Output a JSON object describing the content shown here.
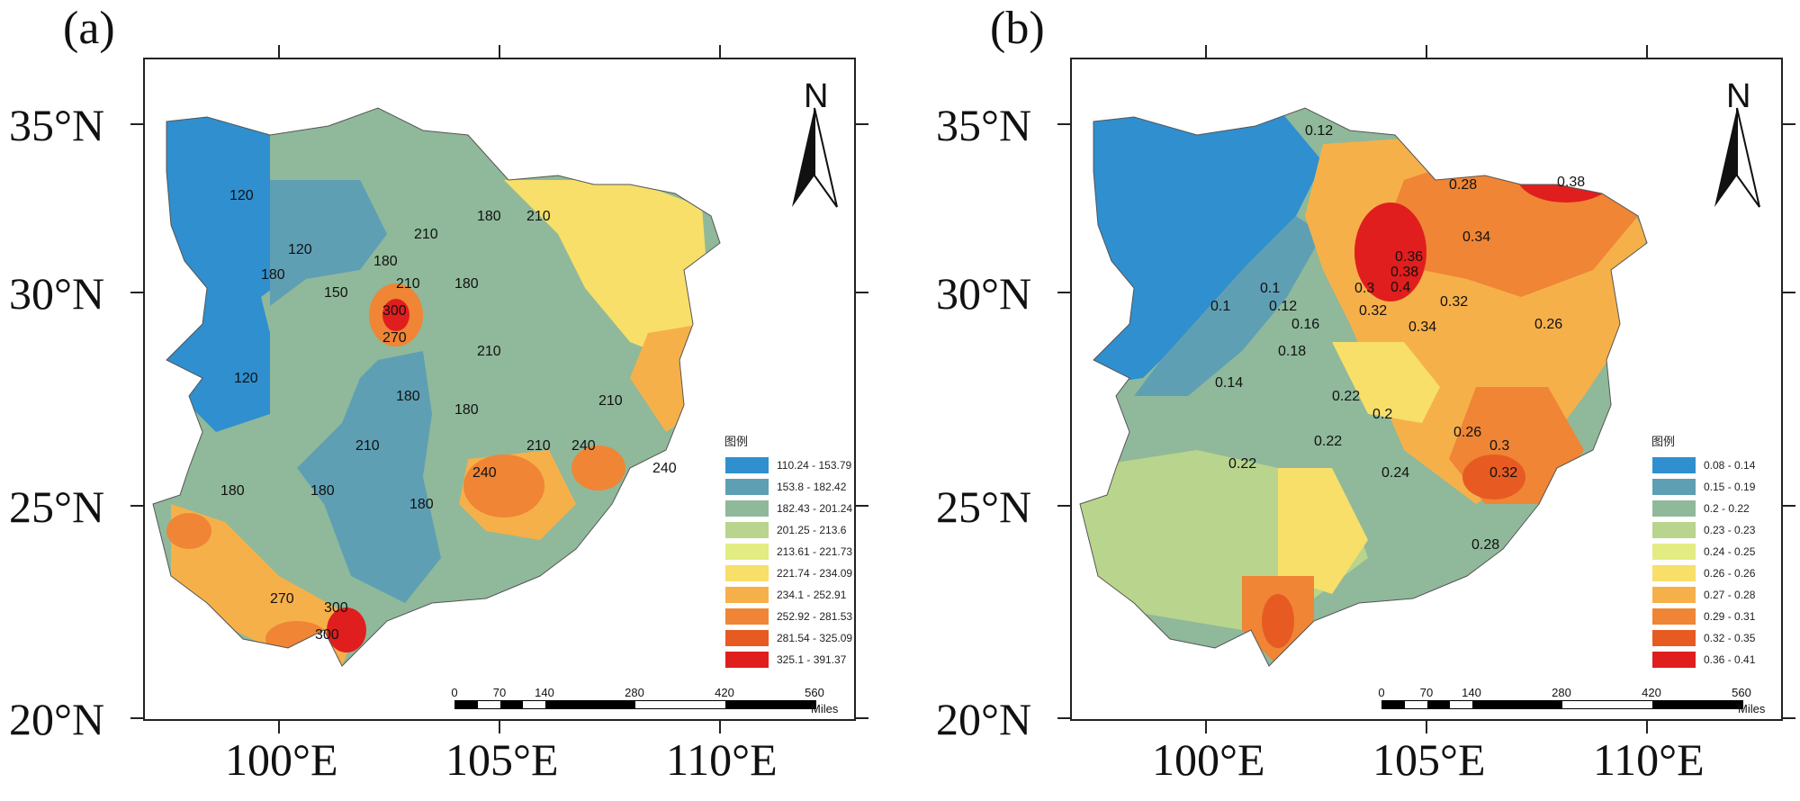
{
  "panels": [
    {
      "id": "a",
      "label": "(a)",
      "north_label": "N",
      "lat_labels": [
        "35°N",
        "30°N",
        "25°N",
        "20°N"
      ],
      "lon_labels": [
        "100°E",
        "105°E",
        "110°E"
      ],
      "legend": {
        "title": "图例",
        "items": [
          {
            "label": "110.24 - 153.79",
            "color": "#2f8fcf"
          },
          {
            "label": "153.8 - 182.42",
            "color": "#5f9fb4"
          },
          {
            "label": "182.43 - 201.24",
            "color": "#8fb99a"
          },
          {
            "label": "201.25 - 213.6",
            "color": "#b9d48c"
          },
          {
            "label": "213.61 - 221.73",
            "color": "#e2ec82"
          },
          {
            "label": "221.74 - 234.09",
            "color": "#f7df6a"
          },
          {
            "label": "234.1 - 252.91",
            "color": "#f6b04a"
          },
          {
            "label": "252.92 - 281.53",
            "color": "#ef8535"
          },
          {
            "label": "281.54 - 325.09",
            "color": "#e75b22"
          },
          {
            "label": "325.1 - 391.37",
            "color": "#e01e1e"
          }
        ]
      },
      "contour_labels": [
        "120",
        "120",
        "180",
        "150",
        "180",
        "210",
        "180",
        "210",
        "180",
        "210",
        "300",
        "270",
        "210",
        "180",
        "180",
        "210",
        "210",
        "240",
        "240",
        "240",
        "210",
        "180",
        "180",
        "180",
        "120",
        "270",
        "300",
        "300"
      ],
      "scale": {
        "ticks": [
          "0",
          "70",
          "140",
          "280",
          "420",
          "560"
        ],
        "unit": "Miles"
      }
    },
    {
      "id": "b",
      "label": "(b)",
      "north_label": "N",
      "lat_labels": [
        "35°N",
        "30°N",
        "25°N",
        "20°N"
      ],
      "lon_labels": [
        "100°E",
        "105°E",
        "110°E"
      ],
      "legend": {
        "title": "图例",
        "items": [
          {
            "label": "0.08 - 0.14",
            "color": "#2f8fcf"
          },
          {
            "label": "0.15 - 0.19",
            "color": "#5f9fb4"
          },
          {
            "label": "0.2 - 0.22",
            "color": "#8fb99a"
          },
          {
            "label": "0.23 - 0.23",
            "color": "#b9d48c"
          },
          {
            "label": "0.24 - 0.25",
            "color": "#e2ec82"
          },
          {
            "label": "0.26 - 0.26",
            "color": "#f7df6a"
          },
          {
            "label": "0.27 - 0.28",
            "color": "#f6b04a"
          },
          {
            "label": "0.29 - 0.31",
            "color": "#ef8535"
          },
          {
            "label": "0.32 - 0.35",
            "color": "#e75b22"
          },
          {
            "label": "0.36 - 0.41",
            "color": "#e01e1e"
          }
        ]
      },
      "contour_labels": [
        "0.12",
        "0.28",
        "0.38",
        "0.34",
        "0.36",
        "0.38",
        "0.4",
        "0.32",
        "0.34",
        "0.3",
        "0.32",
        "0.1",
        "0.12",
        "0.16",
        "0.18",
        "0.14",
        "0.26",
        "0.2",
        "0.22",
        "0.22",
        "0.22",
        "0.24",
        "0.26",
        "0.3",
        "0.32",
        "0.28",
        "0.1"
      ],
      "scale": {
        "ticks": [
          "0",
          "70",
          "140",
          "280",
          "420",
          "560"
        ],
        "unit": "Miles"
      }
    }
  ]
}
